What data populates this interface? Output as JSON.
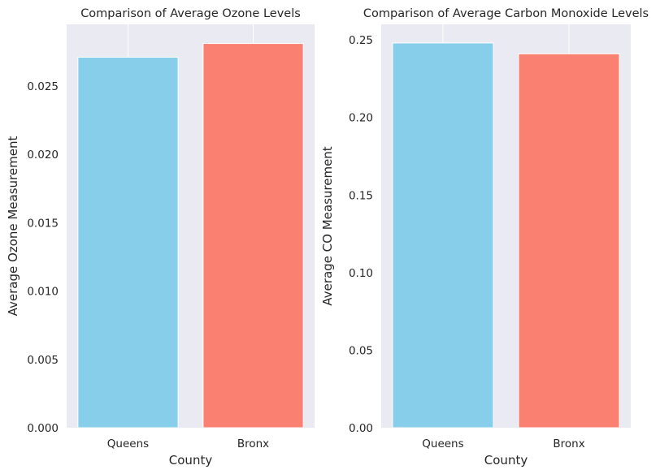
{
  "chart_data": [
    {
      "type": "bar",
      "title": "Comparison of Average Ozone Levels",
      "xlabel": "County",
      "ylabel": "Average Ozone Measurement",
      "categories": [
        "Queens",
        "Bronx"
      ],
      "values": [
        0.0271,
        0.0281
      ],
      "colors": [
        "#87ceeb",
        "#fa8072"
      ],
      "ylim": [
        0,
        0.0295
      ],
      "yticks": [
        0.0,
        0.005,
        0.01,
        0.015,
        0.02,
        0.025
      ],
      "ytick_labels": [
        "0.000",
        "0.005",
        "0.010",
        "0.015",
        "0.020",
        "0.025"
      ],
      "grid": true
    },
    {
      "type": "bar",
      "title": "Comparison of Average Carbon Monoxide Levels",
      "xlabel": "County",
      "ylabel": "Average CO Measurement",
      "categories": [
        "Queens",
        "Bronx"
      ],
      "values": [
        0.248,
        0.241
      ],
      "colors": [
        "#87ceeb",
        "#fa8072"
      ],
      "ylim": [
        0,
        0.26
      ],
      "yticks": [
        0.0,
        0.05,
        0.1,
        0.15,
        0.2,
        0.25
      ],
      "ytick_labels": [
        "0.00",
        "0.05",
        "0.10",
        "0.15",
        "0.20",
        "0.25"
      ],
      "grid": true
    }
  ]
}
